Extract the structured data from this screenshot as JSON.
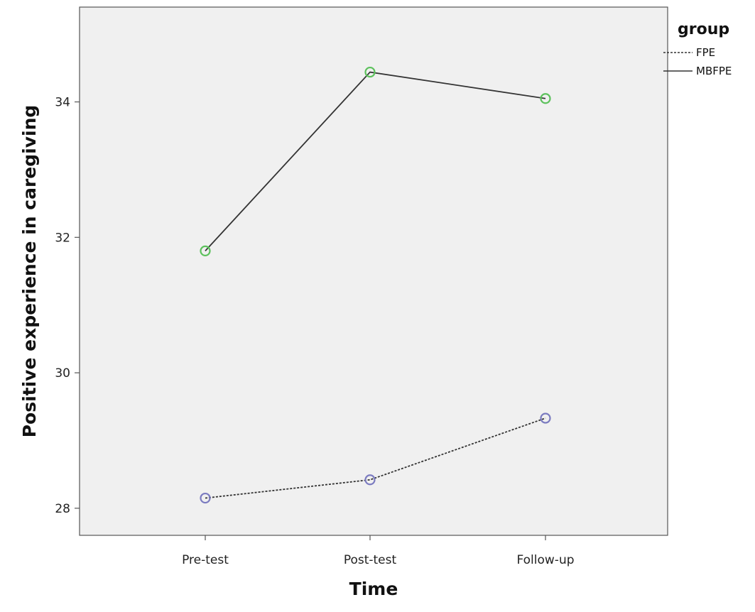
{
  "chart_data": {
    "type": "line",
    "xlabel": "Time",
    "ylabel": "Positive experience in caregiving",
    "categories": [
      "Pre-test",
      "Post-test",
      "Follow-up"
    ],
    "ylim": [
      27.6,
      35.4
    ],
    "yticks": [
      28,
      30,
      32,
      34
    ],
    "grid": false,
    "legend": {
      "title": "group",
      "position": "right"
    },
    "series": [
      {
        "name": "FPE",
        "values": [
          28.15,
          28.42,
          29.33
        ],
        "line_style": "dashed",
        "marker_color": "#7b7bc0"
      },
      {
        "name": "MBFPE",
        "values": [
          31.8,
          34.44,
          34.05
        ],
        "line_style": "solid",
        "marker_color": "#5cc15c"
      }
    ]
  },
  "colors": {
    "plot_background": "#f0f0f0",
    "line": "#333333"
  }
}
